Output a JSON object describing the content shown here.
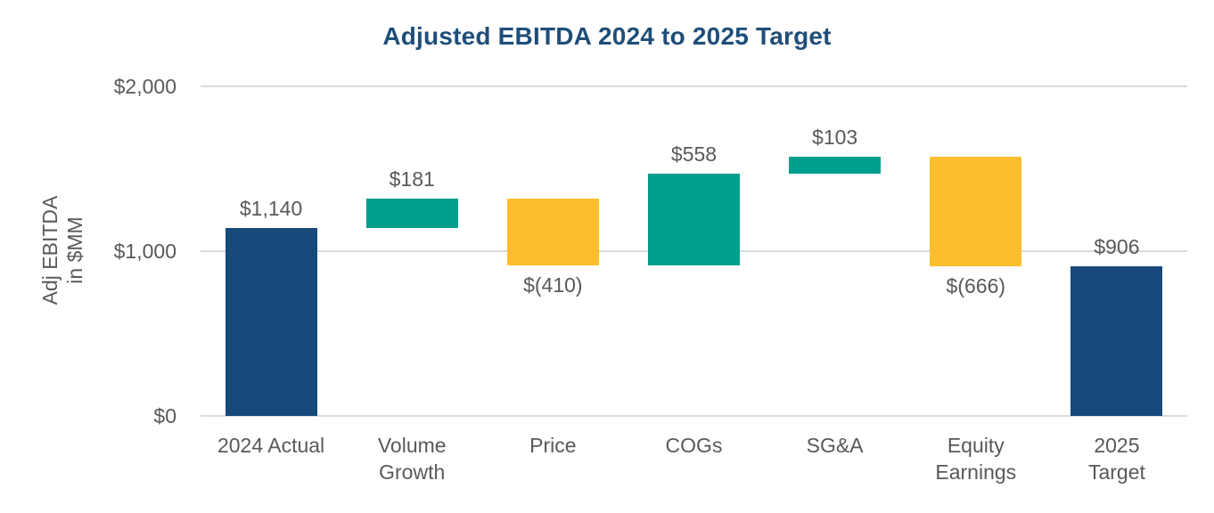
{
  "chart_data": {
    "type": "bar",
    "subtype": "waterfall",
    "title": "Adjusted EBITDA 2024 to 2025 Target",
    "ylabel": "Adj EBITDA in $MM",
    "ylabel_lines": [
      "Adj EBITDA",
      "in $MM"
    ],
    "xlabel": "",
    "ylim": [
      0,
      2000
    ],
    "grid": "horizontal",
    "legend": "none",
    "yticks": [
      {
        "value": 0,
        "label": "$0"
      },
      {
        "value": 1000,
        "label": "$1,000"
      },
      {
        "value": 2000,
        "label": "$2,000"
      }
    ],
    "categories": [
      "2024 Actual",
      "Volume Growth",
      "Price",
      "COGs",
      "SG&A",
      "Equity Earnings",
      "2025 Target"
    ],
    "steps": [
      {
        "category": "2024 Actual",
        "label_lines": [
          "2024 Actual"
        ],
        "value": 1140,
        "kind": "total",
        "display": "$1,140"
      },
      {
        "category": "Volume Growth",
        "label_lines": [
          "Volume",
          "Growth"
        ],
        "value": 181,
        "kind": "increase",
        "display": "$181"
      },
      {
        "category": "Price",
        "label_lines": [
          "Price"
        ],
        "value": -410,
        "kind": "decrease",
        "display": "$(410)"
      },
      {
        "category": "COGs",
        "label_lines": [
          "COGs"
        ],
        "value": 558,
        "kind": "increase",
        "display": "$558"
      },
      {
        "category": "SG&A",
        "label_lines": [
          "SG&A"
        ],
        "value": 103,
        "kind": "increase",
        "display": "$103"
      },
      {
        "category": "Equity Earnings",
        "label_lines": [
          "Equity",
          "Earnings"
        ],
        "value": -666,
        "kind": "decrease",
        "display": "$(666)"
      },
      {
        "category": "2025 Target",
        "label_lines": [
          "2025",
          "Target"
        ],
        "value": 906,
        "kind": "total",
        "display": "$906"
      }
    ],
    "colors": {
      "total": "#17497B",
      "increase": "#009E8C",
      "decrease": "#FDBE2D",
      "title": "#1F4E79",
      "label": "#595959",
      "gridline": "#DBDBDB"
    }
  }
}
